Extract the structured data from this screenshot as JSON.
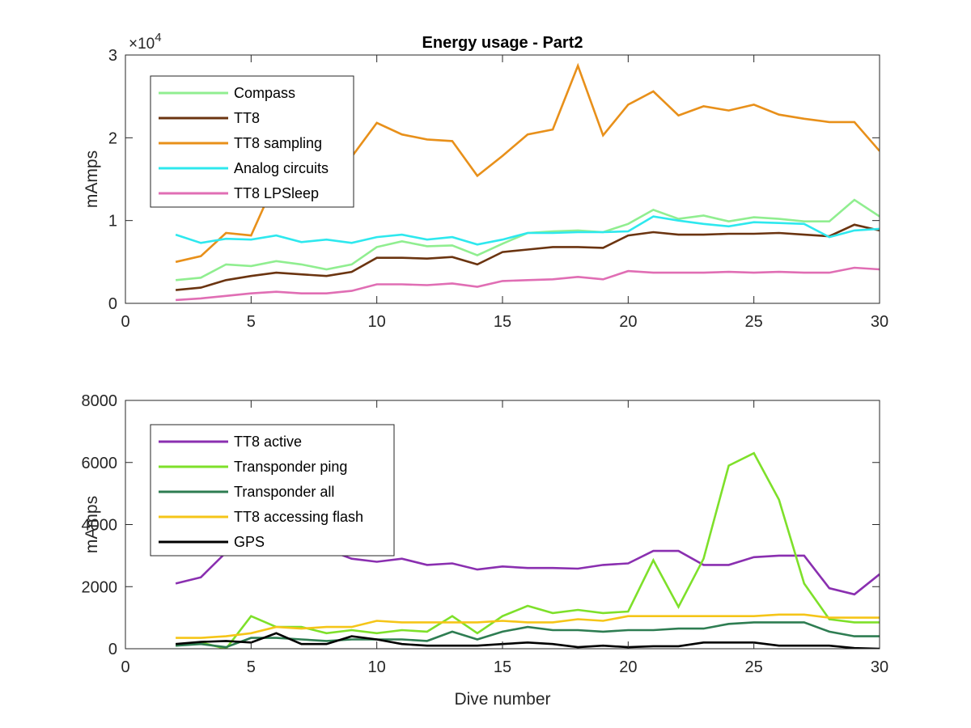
{
  "figure": {
    "background": "#ffffff"
  },
  "chart_data": [
    {
      "type": "line",
      "title": "Energy usage - Part2",
      "xlabel": "",
      "ylabel": "mAmps",
      "xlim": [
        0,
        30
      ],
      "ylim": [
        0,
        30000
      ],
      "xticks": [
        0,
        5,
        10,
        15,
        20,
        25,
        30
      ],
      "yticks": [
        0,
        10000,
        20000,
        30000
      ],
      "ytick_labels": [
        "0",
        "1",
        "2",
        "3"
      ],
      "y_exponent": {
        "base": "×10",
        "power": "4"
      },
      "grid": false,
      "legend_position": "top-left",
      "x": [
        2,
        3,
        4,
        5,
        6,
        7,
        8,
        9,
        10,
        11,
        12,
        13,
        14,
        15,
        16,
        17,
        18,
        19,
        20,
        21,
        22,
        23,
        24,
        25,
        26,
        27,
        28,
        29,
        30
      ],
      "series": [
        {
          "name": "Compass",
          "color": "#90ee90",
          "values": [
            2800,
            3100,
            4700,
            4500,
            5100,
            4700,
            4100,
            4700,
            6800,
            7500,
            6900,
            7000,
            5800,
            7200,
            8500,
            8700,
            8800,
            8600,
            9600,
            11300,
            10200,
            10600,
            9900,
            10400,
            10200,
            9900,
            9900,
            12500,
            10500
          ]
        },
        {
          "name": "TT8",
          "color": "#6b3410",
          "values": [
            1600,
            1900,
            2800,
            3300,
            3700,
            3500,
            3300,
            3800,
            5500,
            5500,
            5400,
            5600,
            4700,
            6200,
            6500,
            6800,
            6800,
            6700,
            8200,
            8600,
            8300,
            8300,
            8400,
            8400,
            8500,
            8300,
            8100,
            9500,
            8800
          ]
        },
        {
          "name": "TT8 sampling",
          "color": "#e8901a",
          "values": [
            5000,
            5700,
            8500,
            8200,
            15000,
            15700,
            17200,
            17700,
            21800,
            20400,
            19800,
            19600,
            15400,
            17800,
            20400,
            21000,
            28700,
            20300,
            24000,
            25600,
            22700,
            23800,
            23300,
            24000,
            22800,
            22300,
            21900,
            21900,
            18400
          ]
        },
        {
          "name": "Analog circuits",
          "color": "#2ee8ee",
          "values": [
            8300,
            7300,
            7800,
            7700,
            8200,
            7400,
            7700,
            7300,
            8000,
            8300,
            7700,
            8000,
            7100,
            7700,
            8500,
            8500,
            8600,
            8600,
            8700,
            10500,
            10000,
            9600,
            9300,
            9800,
            9700,
            9600,
            8000,
            8800,
            9000
          ]
        },
        {
          "name": "TT8 LPSleep",
          "color": "#e06eb4",
          "values": [
            400,
            600,
            900,
            1200,
            1400,
            1200,
            1200,
            1500,
            2300,
            2300,
            2200,
            2400,
            2000,
            2700,
            2800,
            2900,
            3200,
            2900,
            3900,
            3700,
            3700,
            3700,
            3800,
            3700,
            3800,
            3700,
            3700,
            4300,
            4100
          ]
        }
      ]
    },
    {
      "type": "line",
      "title": "",
      "xlabel": "Dive number",
      "ylabel": "mAmps",
      "xlim": [
        0,
        30
      ],
      "ylim": [
        0,
        8000
      ],
      "xticks": [
        0,
        5,
        10,
        15,
        20,
        25,
        30
      ],
      "yticks": [
        0,
        2000,
        4000,
        6000,
        8000
      ],
      "ytick_labels": [
        "0",
        "2000",
        "4000",
        "6000",
        "8000"
      ],
      "grid": false,
      "legend_position": "top-left",
      "x": [
        2,
        3,
        4,
        5,
        6,
        7,
        8,
        9,
        10,
        11,
        12,
        13,
        14,
        15,
        16,
        17,
        18,
        19,
        20,
        21,
        22,
        23,
        24,
        25,
        26,
        27,
        28,
        29,
        30
      ],
      "series": [
        {
          "name": "TT8 active",
          "color": "#8a2fb0",
          "values": [
            2100,
            2300,
            3100,
            3600,
            3400,
            3300,
            3200,
            2900,
            2800,
            2900,
            2700,
            2750,
            2550,
            2650,
            2600,
            2600,
            2580,
            2700,
            2750,
            3150,
            3150,
            2700,
            2700,
            2950,
            3000,
            3000,
            1950,
            1750,
            2400
          ]
        },
        {
          "name": "Transponder ping",
          "color": "#7ee02a",
          "values": [
            100,
            200,
            0,
            1050,
            700,
            700,
            500,
            600,
            500,
            600,
            550,
            1050,
            500,
            1050,
            1380,
            1150,
            1250,
            1150,
            1200,
            2850,
            1350,
            2900,
            5900,
            6300,
            4800,
            2100,
            950,
            850,
            850
          ]
        },
        {
          "name": "Transponder all",
          "color": "#2e7d52",
          "values": [
            100,
            150,
            50,
            350,
            350,
            300,
            250,
            300,
            300,
            300,
            250,
            550,
            300,
            550,
            700,
            600,
            600,
            550,
            600,
            600,
            650,
            650,
            800,
            850,
            850,
            850,
            550,
            400,
            400
          ]
        },
        {
          "name": "TT8 accessing flash",
          "color": "#f5c518",
          "values": [
            350,
            350,
            400,
            500,
            700,
            650,
            700,
            700,
            900,
            850,
            850,
            850,
            850,
            900,
            850,
            850,
            950,
            900,
            1050,
            1050,
            1050,
            1050,
            1050,
            1050,
            1100,
            1100,
            1000,
            1000,
            1000
          ]
        },
        {
          "name": "GPS",
          "color": "#000000",
          "values": [
            150,
            220,
            250,
            200,
            500,
            150,
            150,
            400,
            300,
            150,
            100,
            100,
            100,
            150,
            200,
            150,
            50,
            100,
            50,
            80,
            80,
            200,
            200,
            200,
            100,
            100,
            100,
            20,
            0
          ]
        }
      ]
    }
  ]
}
